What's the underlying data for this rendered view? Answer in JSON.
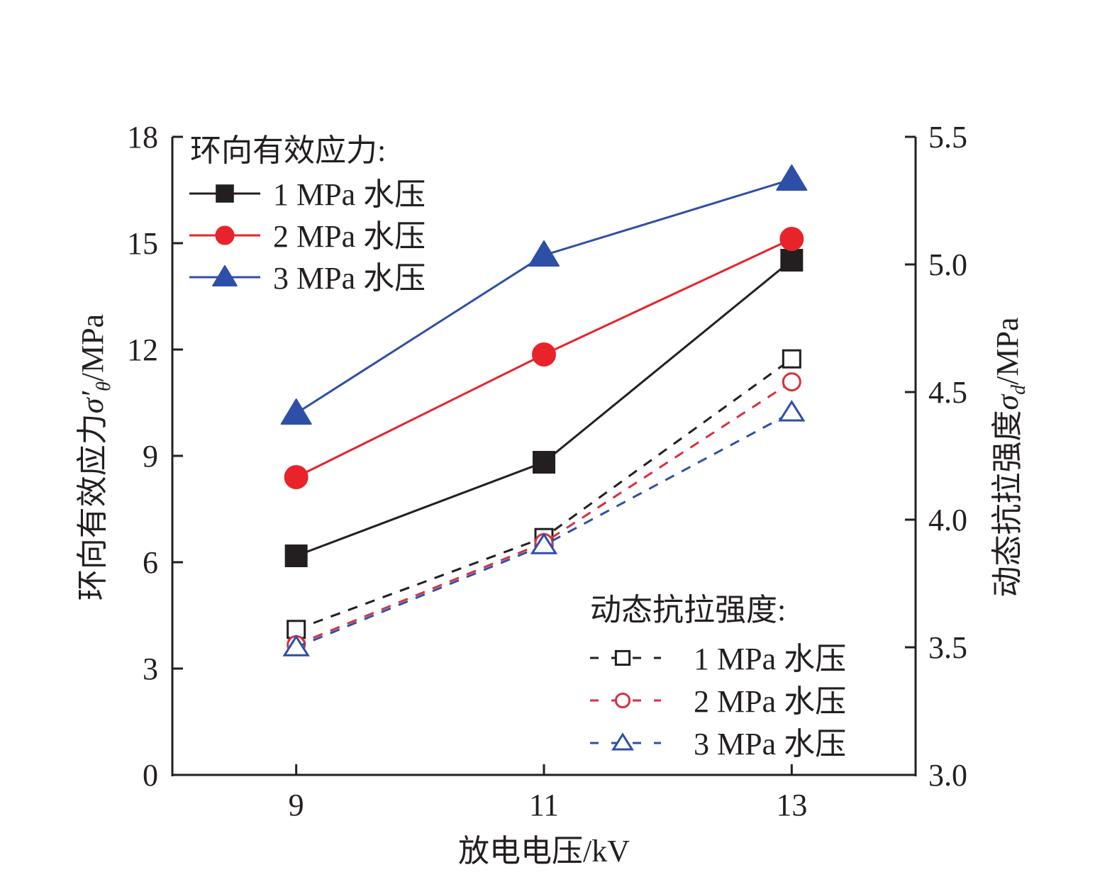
{
  "chart_data": {
    "type": "line",
    "title": "",
    "xlabel": "放电电压/kV",
    "ylabel_left": "环向有效应力σ′θ/MPa",
    "ylabel_right": "动态抗拉强度σd/MPa",
    "x": [
      9,
      11,
      13
    ],
    "x_ticks": [
      "9",
      "11",
      "13"
    ],
    "xlim": [
      8,
      14
    ],
    "ylim_left": [
      0,
      18
    ],
    "y_ticks_left": [
      "0",
      "3",
      "6",
      "9",
      "12",
      "15",
      "18"
    ],
    "ylim_right": [
      3.0,
      5.5
    ],
    "y_ticks_right": [
      "3.0",
      "3.5",
      "4.0",
      "4.5",
      "5.0",
      "5.5"
    ],
    "grid": false,
    "legend_groups": [
      {
        "title": "环向有效应力:",
        "placement": "top-left"
      },
      {
        "title": "动态抗拉强度:",
        "placement": "bottom-right"
      }
    ],
    "series": [
      {
        "name": "1 MPa 水压",
        "group": "环向有效应力",
        "axis": "left",
        "style": "solid",
        "marker": "filled-square",
        "color": "#231f20",
        "values": [
          6.18,
          8.82,
          14.52
        ]
      },
      {
        "name": "2 MPa 水压",
        "group": "环向有效应力",
        "axis": "left",
        "style": "solid",
        "marker": "filled-circle",
        "color": "#e8232a",
        "values": [
          8.4,
          11.86,
          15.12
        ]
      },
      {
        "name": "3 MPa 水压",
        "group": "环向有效应力",
        "axis": "left",
        "style": "solid",
        "marker": "filled-triangle",
        "color": "#2e4fa6",
        "values": [
          10.2,
          14.66,
          16.8
        ]
      },
      {
        "name": "1 MPa 水压",
        "group": "动态抗拉强度",
        "axis": "right",
        "style": "dashed",
        "marker": "open-square",
        "color": "#231f20",
        "values": [
          3.57,
          3.93,
          4.63
        ]
      },
      {
        "name": "2 MPa 水压",
        "group": "动态抗拉强度",
        "axis": "right",
        "style": "dashed",
        "marker": "open-circle",
        "color": "#d7303f",
        "values": [
          3.51,
          3.91,
          4.54
        ]
      },
      {
        "name": "3 MPa 水压",
        "group": "动态抗拉强度",
        "axis": "right",
        "style": "dashed",
        "marker": "open-triangle",
        "color": "#2e4fa6",
        "values": [
          3.5,
          3.9,
          4.42
        ]
      }
    ]
  }
}
